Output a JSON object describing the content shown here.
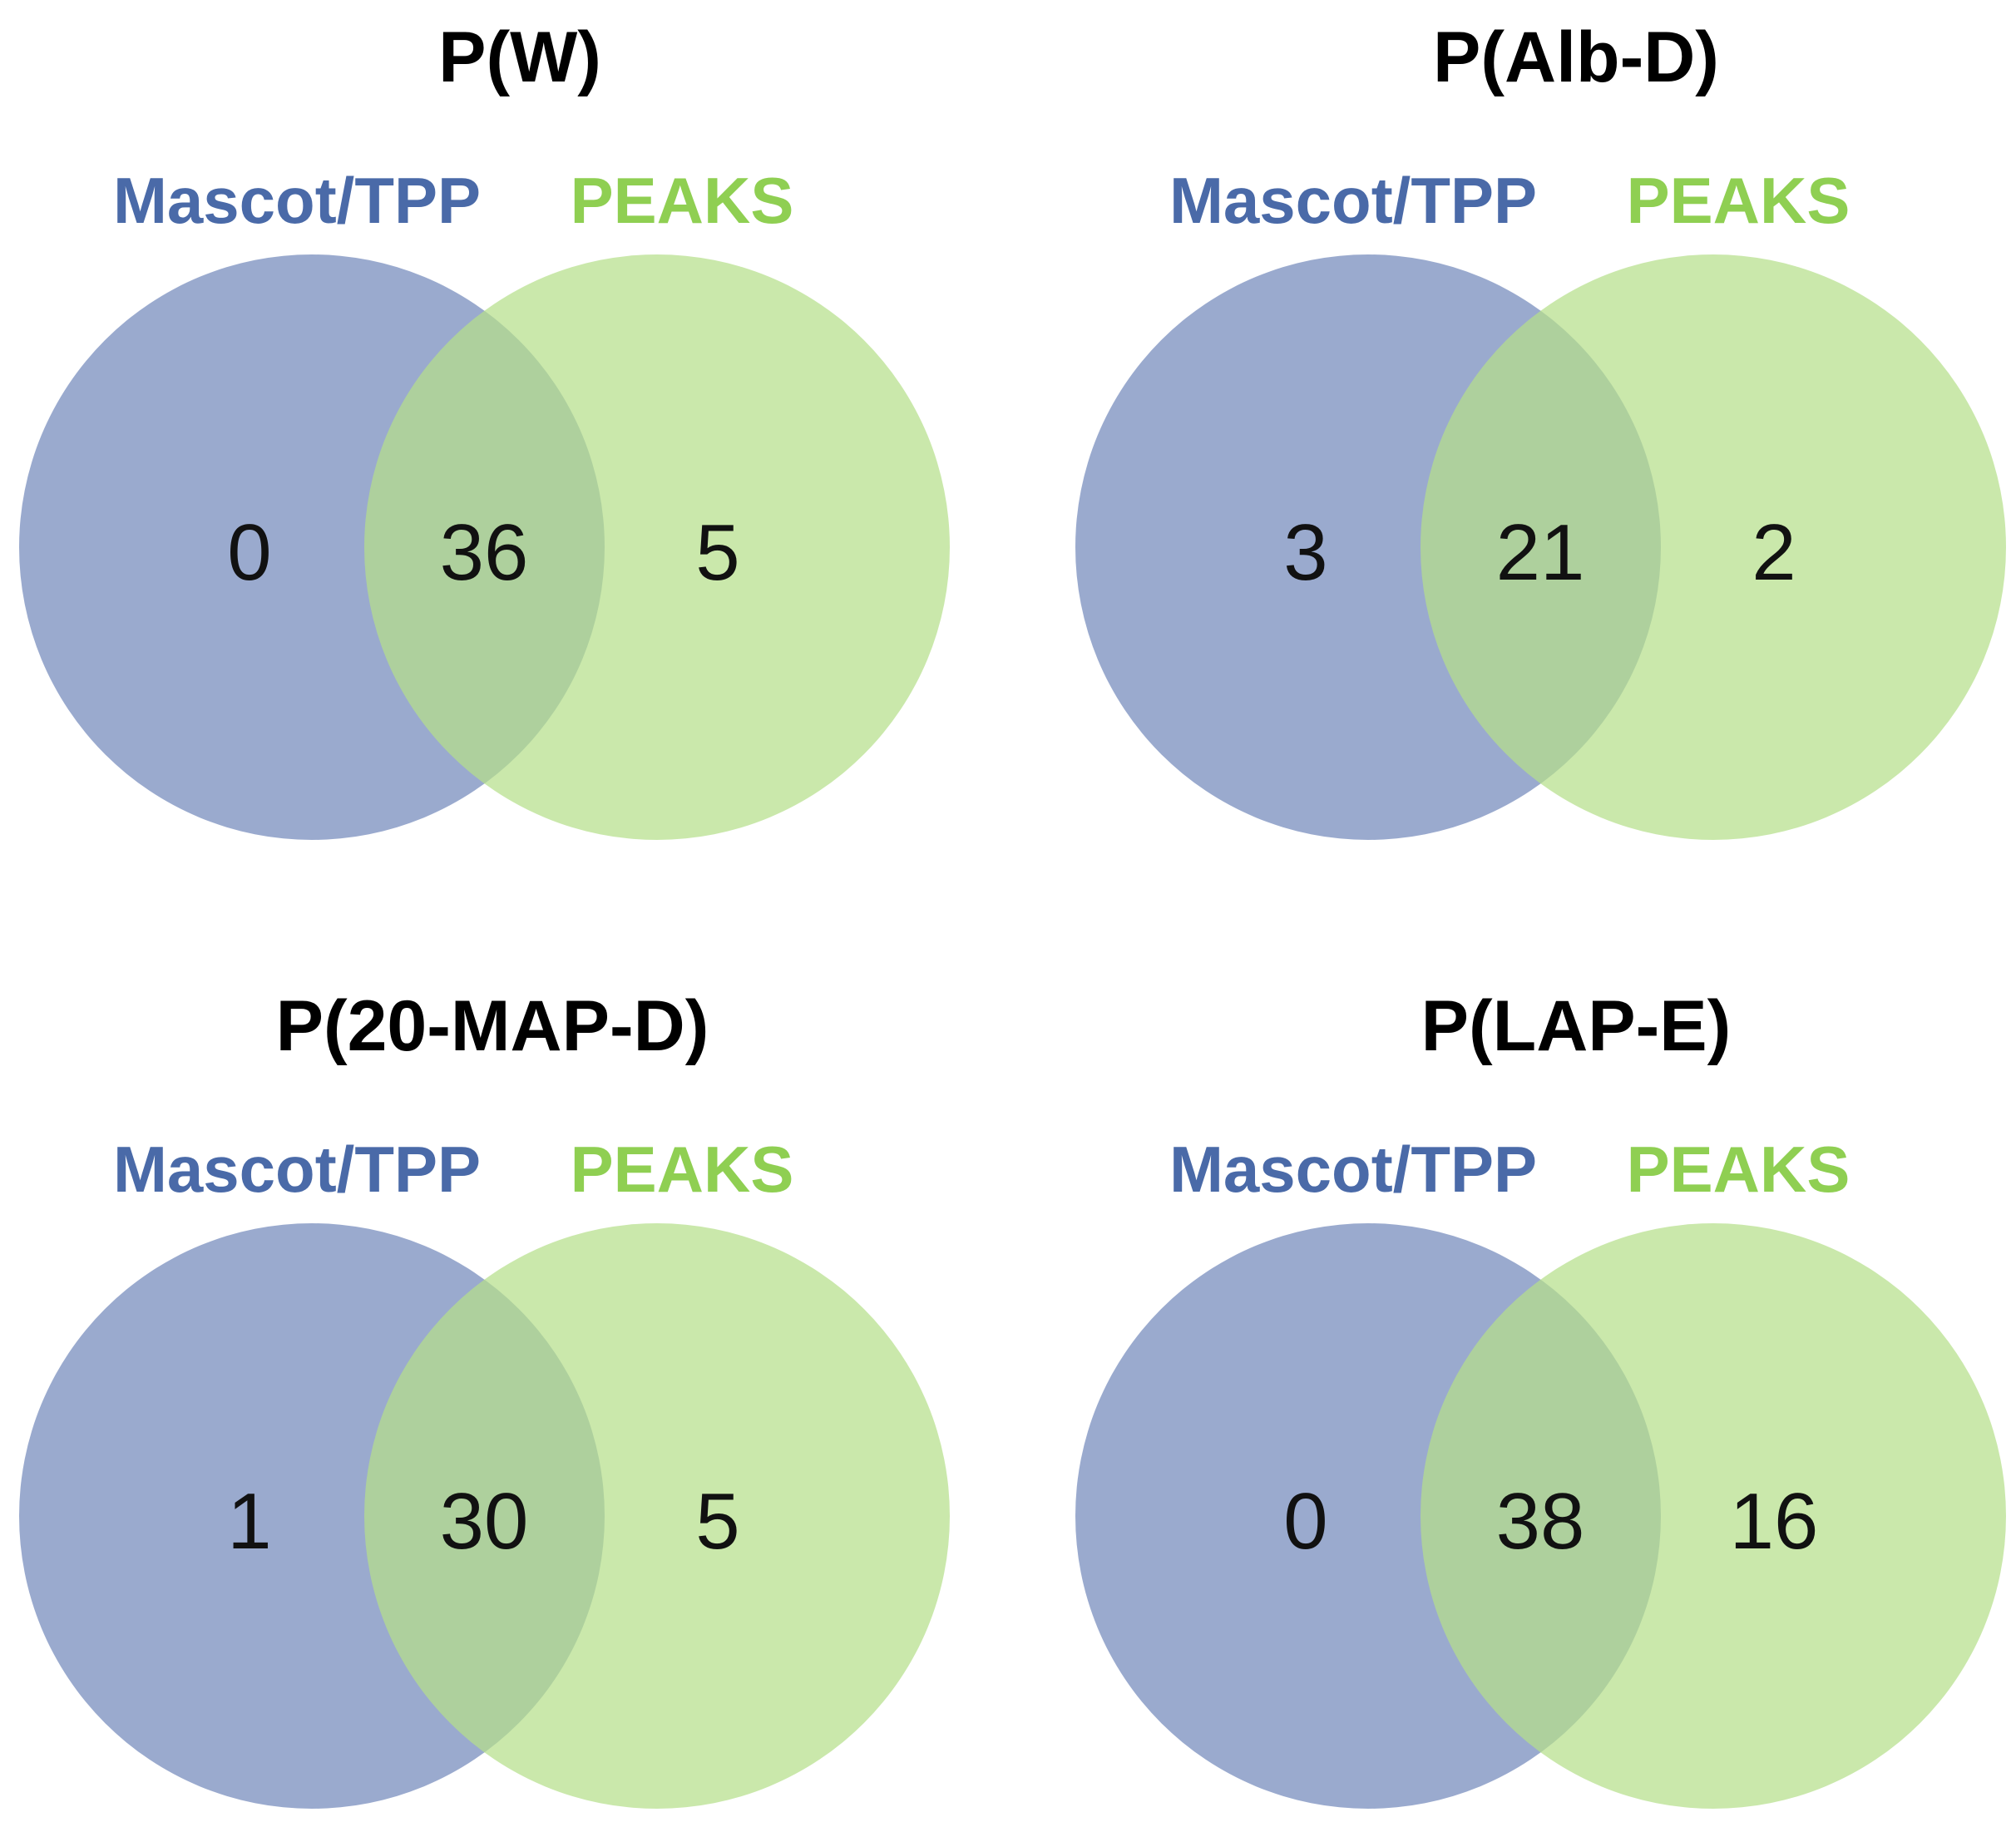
{
  "colors": {
    "set_a": "#8497c3",
    "set_b": "#b6df8b",
    "label_a": "#4a6aa8",
    "label_b": "#8fcf52"
  },
  "chart_data": [
    {
      "type": "venn",
      "title": "P(W)",
      "sets": [
        "Mascot/TPP",
        "PEAKS"
      ],
      "counts": {
        "only_a": "0",
        "both": "36",
        "only_b": "5"
      }
    },
    {
      "type": "venn",
      "title": "P(Alb-D)",
      "sets": [
        "Mascot/TPP",
        "PEAKS"
      ],
      "counts": {
        "only_a": "3",
        "both": "21",
        "only_b": "2"
      }
    },
    {
      "type": "venn",
      "title": "P(20-MAP-D)",
      "sets": [
        "Mascot/TPP",
        "PEAKS"
      ],
      "counts": {
        "only_a": "1",
        "both": "30",
        "only_b": "5"
      }
    },
    {
      "type": "venn",
      "title": "P(LAP-E)",
      "sets": [
        "Mascot/TPP",
        "PEAKS"
      ],
      "counts": {
        "only_a": "0",
        "both": "38",
        "only_b": "16"
      }
    }
  ]
}
